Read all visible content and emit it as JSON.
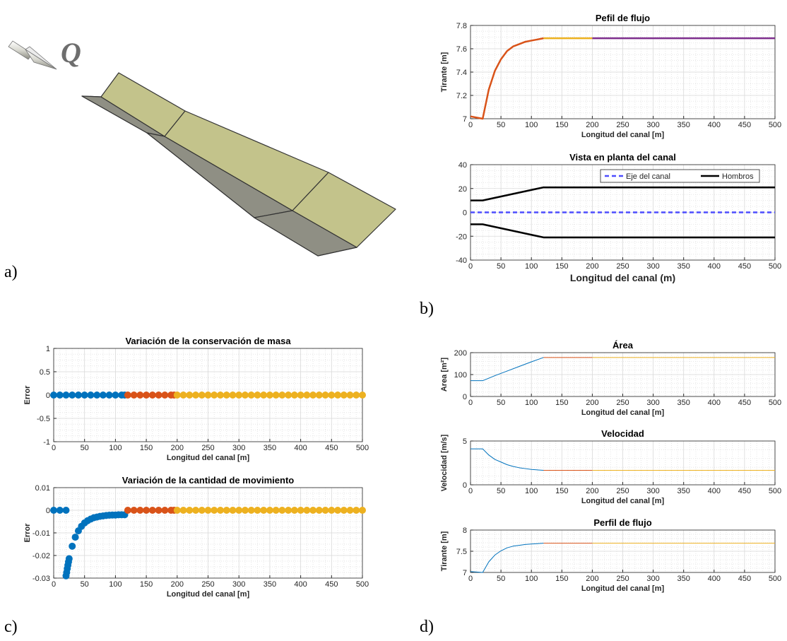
{
  "panel_labels": [
    "a)",
    "b)",
    "c)",
    "d)"
  ],
  "figure_a": {
    "label": "Q"
  },
  "chart_data": [
    {
      "type": "line",
      "title": "Pefil de flujo",
      "xlabel": "Longitud del canal [m]",
      "ylabel": "Tirante [m]",
      "xlim": [
        0,
        500
      ],
      "xticks": [
        0,
        50,
        100,
        150,
        200,
        250,
        300,
        350,
        400,
        450,
        500
      ],
      "ylim": [
        7,
        7.8
      ],
      "yticks": [
        7,
        7.2,
        7.4,
        7.6,
        7.8
      ],
      "grid": true,
      "series": [
        {
          "color": "#d95319",
          "x": [
            0,
            10,
            20,
            30,
            40,
            50,
            60,
            70,
            80,
            90,
            100,
            110,
            120
          ],
          "values": [
            7.02,
            7.01,
            7.0,
            7.25,
            7.41,
            7.51,
            7.58,
            7.62,
            7.64,
            7.66,
            7.67,
            7.68,
            7.69
          ]
        },
        {
          "color": "#edb120",
          "x": [
            120,
            200
          ],
          "values": [
            7.69,
            7.69
          ]
        },
        {
          "color": "#7e2f8e",
          "x": [
            200,
            500
          ],
          "values": [
            7.69,
            7.69
          ]
        }
      ]
    },
    {
      "type": "line",
      "title": "Vista en planta del canal",
      "xlabel": "Longitud del canal (m)",
      "xlim": [
        0,
        500
      ],
      "xticks": [
        0,
        50,
        100,
        150,
        200,
        250,
        300,
        350,
        400,
        450,
        500
      ],
      "ylim": [
        -40,
        40
      ],
      "yticks": [
        -40,
        -20,
        0,
        20,
        40
      ],
      "grid": true,
      "legend": "upper right",
      "series": [
        {
          "name": "Eje del canal",
          "color": "#4d4dff",
          "linestyle": "--",
          "x": [
            0,
            500
          ],
          "values": [
            0,
            0
          ]
        },
        {
          "name": "Hombros",
          "color": "#000000",
          "x": [
            0,
            20,
            120,
            500
          ],
          "values": [
            10,
            10,
            21,
            21
          ]
        },
        {
          "color": "#000000",
          "x": [
            0,
            20,
            120,
            500
          ],
          "values": [
            -10,
            -10,
            -21,
            -21
          ]
        }
      ]
    },
    {
      "type": "scatter",
      "title": "Variación de la conservación de masa",
      "xlabel": "Longitud del canal [m]",
      "ylabel": "Error",
      "xlim": [
        0,
        500
      ],
      "xticks": [
        0,
        50,
        100,
        150,
        200,
        250,
        300,
        350,
        400,
        450,
        500
      ],
      "ylim": [
        -1,
        1
      ],
      "yticks": [
        -1,
        -0.5,
        0,
        0.5,
        1
      ],
      "grid": true,
      "series": [
        {
          "color": "#0072bd",
          "x": [
            0,
            10,
            20,
            30,
            40,
            50,
            60,
            70,
            80,
            90,
            100,
            110,
            115
          ],
          "values": [
            0,
            0,
            0,
            0,
            0,
            0,
            0,
            0,
            0,
            0,
            0,
            0,
            0
          ]
        },
        {
          "color": "#d95319",
          "x": [
            120,
            130,
            140,
            150,
            160,
            170,
            180,
            190,
            195
          ],
          "values": [
            0,
            0,
            0,
            0,
            0,
            0,
            0,
            0,
            0
          ]
        },
        {
          "color": "#edb120",
          "x": [
            200,
            210,
            220,
            230,
            240,
            250,
            260,
            270,
            280,
            290,
            300,
            310,
            320,
            330,
            340,
            350,
            360,
            370,
            380,
            390,
            400,
            410,
            420,
            430,
            440,
            450,
            460,
            470,
            480,
            490,
            500
          ],
          "values": [
            0,
            0,
            0,
            0,
            0,
            0,
            0,
            0,
            0,
            0,
            0,
            0,
            0,
            0,
            0,
            0,
            0,
            0,
            0,
            0,
            0,
            0,
            0,
            0,
            0,
            0,
            0,
            0,
            0,
            0,
            0
          ]
        }
      ]
    },
    {
      "type": "scatter",
      "title": "Variación de la cantidad de movimiento",
      "xlabel": "Longitud del canal [m]",
      "ylabel": "Error",
      "xlim": [
        0,
        500
      ],
      "xticks": [
        0,
        50,
        100,
        150,
        200,
        250,
        300,
        350,
        400,
        450,
        500
      ],
      "ylim": [
        -0.03,
        0.01
      ],
      "yticks": [
        -0.03,
        -0.02,
        -0.01,
        0,
        0.01
      ],
      "grid": true,
      "series": [
        {
          "color": "#0072bd",
          "x": [
            0,
            10,
            20,
            20,
            21,
            22,
            23,
            24,
            25,
            30,
            35,
            40,
            45,
            50,
            55,
            60,
            65,
            70,
            75,
            80,
            85,
            90,
            95,
            100,
            105,
            110,
            115
          ],
          "values": [
            0,
            0,
            0,
            -0.029,
            -0.0275,
            -0.0258,
            -0.0243,
            -0.0228,
            -0.0214,
            -0.0159,
            -0.0119,
            -0.0091,
            -0.0071,
            -0.0056,
            -0.0046,
            -0.0039,
            -0.0033,
            -0.003,
            -0.0027,
            -0.0025,
            -0.0023,
            -0.0022,
            -0.0021,
            -0.0021,
            -0.002,
            -0.002,
            -0.002
          ]
        },
        {
          "color": "#d95319",
          "x": [
            120,
            130,
            140,
            150,
            160,
            170,
            180,
            190,
            195
          ],
          "values": [
            0,
            0,
            0,
            0,
            0,
            0,
            0,
            0,
            0
          ]
        },
        {
          "color": "#edb120",
          "x": [
            200,
            210,
            220,
            230,
            240,
            250,
            260,
            270,
            280,
            290,
            300,
            310,
            320,
            330,
            340,
            350,
            360,
            370,
            380,
            390,
            400,
            410,
            420,
            430,
            440,
            450,
            460,
            470,
            480,
            490,
            500
          ],
          "values": [
            0,
            0,
            0,
            0,
            0,
            0,
            0,
            0,
            0,
            0,
            0,
            0,
            0,
            0,
            0,
            0,
            0,
            0,
            0,
            0,
            0,
            0,
            0,
            0,
            0,
            0,
            0,
            0,
            0,
            0,
            0
          ]
        }
      ]
    },
    {
      "type": "line",
      "title": "Área",
      "xlabel": "Longitud del canal [m]",
      "ylabel": "Area [m²]",
      "xlim": [
        0,
        500
      ],
      "xticks": [
        0,
        50,
        100,
        150,
        200,
        250,
        300,
        350,
        400,
        450,
        500
      ],
      "ylim": [
        0,
        200
      ],
      "yticks": [
        0,
        100,
        200
      ],
      "grid": true,
      "series": [
        {
          "color": "#0072bd",
          "x": [
            0,
            20,
            40,
            60,
            80,
            100,
            120
          ],
          "values": [
            72,
            72,
            95,
            116,
            137,
            158,
            178
          ]
        },
        {
          "color": "#d95319",
          "x": [
            120,
            200
          ],
          "values": [
            178,
            178
          ]
        },
        {
          "color": "#edb120",
          "x": [
            200,
            500
          ],
          "values": [
            178,
            178
          ]
        }
      ]
    },
    {
      "type": "line",
      "title": "Velocidad",
      "xlabel": "Longitud del canal [m]",
      "ylabel": "Velocidad [m/s]",
      "xlim": [
        0,
        500
      ],
      "xticks": [
        0,
        50,
        100,
        150,
        200,
        250,
        300,
        350,
        400,
        450,
        500
      ],
      "ylim": [
        0,
        5
      ],
      "yticks": [
        0,
        5
      ],
      "grid": true,
      "series": [
        {
          "color": "#0072bd",
          "x": [
            0,
            20,
            30,
            40,
            50,
            60,
            70,
            80,
            90,
            100,
            110,
            120
          ],
          "values": [
            4.1,
            4.1,
            3.4,
            2.9,
            2.6,
            2.3,
            2.1,
            1.95,
            1.85,
            1.75,
            1.7,
            1.65
          ]
        },
        {
          "color": "#d95319",
          "x": [
            120,
            200
          ],
          "values": [
            1.65,
            1.65
          ]
        },
        {
          "color": "#edb120",
          "x": [
            200,
            500
          ],
          "values": [
            1.65,
            1.65
          ]
        }
      ]
    },
    {
      "type": "line",
      "title": "Perfil de flujo",
      "xlabel": "Longitud del canal [m]",
      "ylabel": "Tirante [m]",
      "xlim": [
        0,
        500
      ],
      "xticks": [
        0,
        50,
        100,
        150,
        200,
        250,
        300,
        350,
        400,
        450,
        500
      ],
      "ylim": [
        7,
        8
      ],
      "yticks": [
        7,
        7.5,
        8
      ],
      "grid": true,
      "series": [
        {
          "color": "#0072bd",
          "x": [
            0,
            10,
            20,
            30,
            40,
            50,
            60,
            70,
            80,
            90,
            100,
            110,
            120
          ],
          "values": [
            7.02,
            7.01,
            7.0,
            7.25,
            7.41,
            7.51,
            7.58,
            7.62,
            7.64,
            7.66,
            7.67,
            7.68,
            7.69
          ]
        },
        {
          "color": "#d95319",
          "x": [
            120,
            200
          ],
          "values": [
            7.69,
            7.69
          ]
        },
        {
          "color": "#edb120",
          "x": [
            200,
            500
          ],
          "values": [
            7.69,
            7.69
          ]
        }
      ]
    }
  ]
}
